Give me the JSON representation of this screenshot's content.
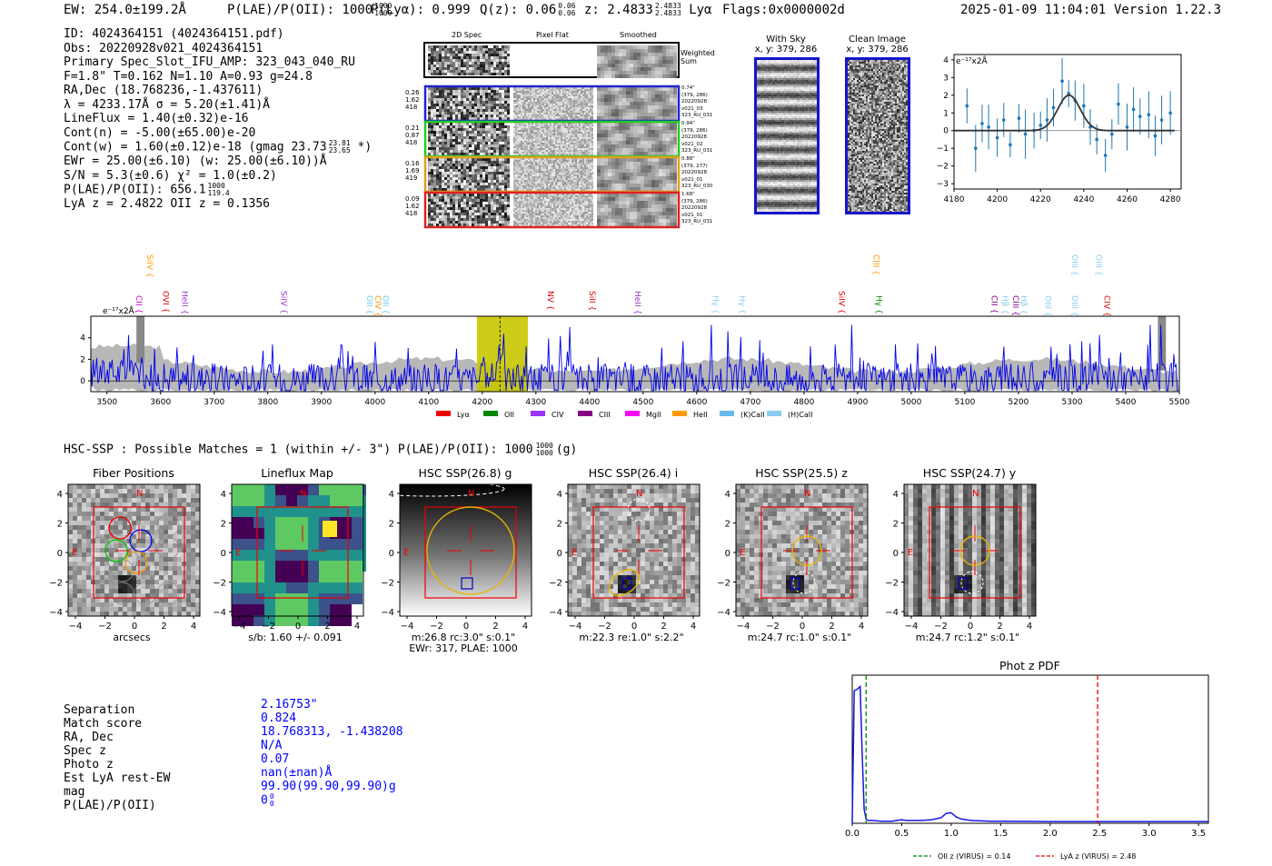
{
  "header": {
    "ew": "EW: 254.0±199.2Å",
    "plae_label": "P(LAE)/P(OII): 1000",
    "plae_sup": "1000",
    "plae_sub": "1000",
    "plya": "P(Lyα): 0.999",
    "qz_label": "Q(z): 0.06",
    "qz_sup": "0.06",
    "qz_sub": "0.06",
    "z_label": "z: 2.4833",
    "z_sup": "2.4833",
    "z_sub": "2.4833",
    "z_line": "Lyα",
    "flags": "Flags:0x0000002d",
    "timestamp": "2025-01-09 11:04:01",
    "version": "Version 1.22.3"
  },
  "info": {
    "id": "ID: 4024364151 (4024364151.pdf)",
    "obs": "Obs: 20220928v021_4024364151",
    "primary": "Primary Spec_Slot_IFU_AMP: 323_043_040_RU",
    "fparams": "F=1.8\"  T=0.162  N=1.10  A=0.93  g=24.8",
    "radec": "RA,Dec (18.768236,-1.437611)",
    "lambda": "λ = 4233.17Å   σ = 5.20(±1.41)Å",
    "lineflux": "LineFlux = 1.40(±0.32)e-16",
    "contn": "Cont(n) = -5.00(±65.00)e-20",
    "contw": "Cont(w) = 1.60(±0.12)e-18 (gmag 23.73",
    "contw_sup": "23.81",
    "contw_sub": "23.65",
    "contw_end": " *)",
    "ewr": "EWr = 25.00(±6.10) (w: 25.00(±6.10))Å",
    "sn": "S/N = 5.3(±0.6)  χ² = 1.0(±0.2)",
    "plae": "P(LAE)/P(OII): 656.1",
    "plae_sup": "1000",
    "plae_sub": "119.4",
    "lyaz": "LyA z = 2.4822  OII z = 0.1356"
  },
  "cutouts": {
    "col_headers": [
      "2D Spec",
      "Pixel Flat",
      "Smoothed"
    ],
    "weighted_sum": "Weighted Sum",
    "rows": [
      {
        "left": [
          "0.26",
          "1.62",
          "418"
        ],
        "right": [
          "0.74\"",
          "(379, 286)",
          "20220928",
          "v021_03",
          "323_RU_031"
        ],
        "color": "#2222cc"
      },
      {
        "left": [
          "0.21",
          "0.87",
          "418"
        ],
        "right": [
          "0.94\"",
          "(379, 286)",
          "20220928",
          "v021_02",
          "323_RU_031"
        ],
        "color": "#22cc22"
      },
      {
        "left": [
          "0.16",
          "1.69",
          "419"
        ],
        "right": [
          "0.88\"",
          "(379, 277)",
          "20220928",
          "v021_01",
          "323_RU_030"
        ],
        "color": "#e0a020"
      },
      {
        "left": [
          "0.09",
          "1.62",
          "418"
        ],
        "right": [
          "1.68\"",
          "(379, 286)",
          "20220928",
          "v021_01",
          "323_RU_031"
        ],
        "color": "#dd2222"
      }
    ],
    "with_sky_title": "With Sky",
    "with_sky_xy": "x, y: 379, 286",
    "clean_title": "Clean Image",
    "clean_xy": "x, y: 379, 286"
  },
  "zoom_chart": {
    "unit": "e⁻¹⁷x2Å",
    "chart_data": {
      "type": "scatter",
      "x": [
        4186,
        4190,
        4193,
        4196,
        4200,
        4203,
        4206,
        4210,
        4213,
        4217,
        4220,
        4223,
        4226,
        4230,
        4233,
        4236,
        4240,
        4243,
        4246,
        4250,
        4253,
        4256,
        4260,
        4263,
        4266,
        4270,
        4273,
        4276,
        4280
      ],
      "y": [
        1.4,
        -1.0,
        0.4,
        0.2,
        -0.4,
        0.6,
        -0.8,
        0.7,
        -0.2,
        0.0,
        0.3,
        0.6,
        1.3,
        2.8,
        2.1,
        1.7,
        1.4,
        0.2,
        -0.5,
        -1.4,
        -0.2,
        1.5,
        0.2,
        1.2,
        0.8,
        0.9,
        -0.3,
        0.6,
        1.0
      ],
      "xlim": [
        4180,
        4285
      ],
      "ylim": [
        -3.3,
        4.3
      ],
      "xticks": [
        4180,
        4200,
        4220,
        4240,
        4260,
        4280
      ],
      "yticks": [
        -3,
        -2,
        -1,
        0,
        1,
        2,
        3,
        4
      ],
      "fit_center": 4233.17,
      "fit_sigma": 5.2,
      "fit_amp": 2.0
    }
  },
  "spectrum": {
    "unit": "e⁻¹⁷x2Å",
    "xticks": [
      3500,
      3600,
      3700,
      3800,
      3900,
      4000,
      4100,
      4200,
      4300,
      4400,
      4500,
      4600,
      4700,
      4800,
      4900,
      5000,
      5100,
      5200,
      5300,
      5400,
      5500
    ],
    "yticks": [
      0,
      2,
      4
    ],
    "xlim": [
      3470,
      5500
    ],
    "ylim": [
      -1,
      6
    ],
    "highlight": [
      4190,
      4285
    ],
    "line_marker": 4233,
    "lines": [
      {
        "name": "CII",
        "x": 3555,
        "row": 3,
        "color": "#cc00cc"
      },
      {
        "name": "SiIV",
        "x": 3575,
        "row": 1,
        "color": "#ff9900"
      },
      {
        "name": "OVI",
        "x": 3605,
        "row": 2,
        "color": "#dd0000"
      },
      {
        "name": "HeII",
        "x": 3640,
        "row": 2,
        "color": "#9933cc"
      },
      {
        "name": "SiIV",
        "x": 3825,
        "row": 2,
        "color": "#9933cc"
      },
      {
        "name": "OII",
        "x": 3985,
        "row": 3,
        "color": "#66ccee"
      },
      {
        "name": "CIV",
        "x": 4000,
        "row": 3,
        "color": "#ff9900"
      },
      {
        "name": "OII",
        "x": 4015,
        "row": 3,
        "color": "#66ccee"
      },
      {
        "name": "NV",
        "x": 4322,
        "row": 2,
        "color": "#dd0000"
      },
      {
        "name": "SiII",
        "x": 4400,
        "row": 2,
        "color": "#dd0000"
      },
      {
        "name": "HeII",
        "x": 4485,
        "row": 2,
        "color": "#9933cc"
      },
      {
        "name": "Hγ",
        "x": 4630,
        "row": 3,
        "color": "#88ccee"
      },
      {
        "name": "Hγ",
        "x": 4680,
        "row": 3,
        "color": "#88ccee"
      },
      {
        "name": "SiIV",
        "x": 4865,
        "row": 2,
        "color": "#dd0000"
      },
      {
        "name": "CIII",
        "x": 4930,
        "row": 1,
        "color": "#ff9900"
      },
      {
        "name": "Hγ",
        "x": 4935,
        "row": 3,
        "color": "#008800"
      },
      {
        "name": "CII",
        "x": 5150,
        "row": 3,
        "color": "#880088"
      },
      {
        "name": "Hβ",
        "x": 5170,
        "row": 3,
        "color": "#88ccee"
      },
      {
        "name": "CIII",
        "x": 5190,
        "row": 3,
        "color": "#880088"
      },
      {
        "name": "Hβ",
        "x": 5205,
        "row": 3,
        "color": "#88ccee"
      },
      {
        "name": "OIII",
        "x": 5250,
        "row": 3,
        "color": "#88ccee"
      },
      {
        "name": "OIII",
        "x": 5300,
        "row": 1,
        "color": "#88ccee"
      },
      {
        "name": "OIII",
        "x": 5300,
        "row": 3,
        "color": "#88ccee"
      },
      {
        "name": "OIII",
        "x": 5345,
        "row": 1,
        "color": "#88ccee"
      },
      {
        "name": "CIV",
        "x": 5360,
        "row": 3,
        "color": "#dd0000"
      }
    ],
    "legend": [
      {
        "label": "Lyα",
        "color": "#ee0000"
      },
      {
        "label": "OII",
        "color": "#008800"
      },
      {
        "label": "CIV",
        "color": "#9933ff"
      },
      {
        "label": "CIII",
        "color": "#880088"
      },
      {
        "label": "MgII",
        "color": "#ff00ff"
      },
      {
        "label": "HeII",
        "color": "#ff9900"
      },
      {
        "label": "(K)CaII",
        "color": "#66bbee"
      },
      {
        "label": "(H)CaII",
        "color": "#88ccee"
      }
    ]
  },
  "hsc": {
    "summary": "HSC-SSP : Possible Matches = 1 (within +/- 3\")  P(LAE)/P(OII): 1000",
    "summary_sup": "1000",
    "summary_sub": "1000",
    "summary_end": "(g)",
    "panels": [
      {
        "title": "Fiber Positions",
        "caption1": "arcsecs",
        "caption2": ""
      },
      {
        "title": "Lineflux Map",
        "caption1": "s/b: 1.60 +/- 0.091",
        "caption2": ""
      },
      {
        "title": "HSC SSP(26.8) g",
        "caption1": "m:26.8 rc:3.0\"  s:0.1\"",
        "caption2": "EWr: 317, PLAE: 1000"
      },
      {
        "title": "HSC SSP(26.4) i",
        "caption1": "m:22.3  re:1.0\"  s:2.2\"",
        "caption2": ""
      },
      {
        "title": "HSC SSP(25.5) z",
        "caption1": "m:24.7 rc:1.0\"  s:0.1\"",
        "caption2": ""
      },
      {
        "title": "HSC SSP(24.7) y",
        "caption1": "m:24.7 rc:1.2\"  s:0.1\"",
        "caption2": ""
      }
    ],
    "axis_ticks": [
      "4",
      "2",
      "0",
      "−2",
      "−4"
    ],
    "x_ticks": [
      "−4",
      "−2",
      "0",
      "2",
      "4"
    ],
    "north": "N",
    "east": "E"
  },
  "match": {
    "labels": [
      "Separation",
      "Match score",
      "RA, Dec",
      "Spec z",
      "Photo z",
      "Est LyA rest-EW",
      "mag",
      "P(LAE)/P(OII)"
    ],
    "values": [
      "2.16753\"",
      "0.824",
      "18.768313, -1.438208",
      "N/A",
      "0.07",
      "nan(±nan)Å",
      "99.90(99.90,99.90)g",
      "0"
    ],
    "plae_sup": "0",
    "plae_sub": "0"
  },
  "photz": {
    "title": "Phot z PDF",
    "legend_oii": "OII z (VIRUS) = 0.14",
    "legend_lya": "LyA z (VIRUS) = 2.48",
    "chart_data": {
      "type": "line",
      "xlim": [
        0,
        3.6
      ],
      "xticks": [
        0.0,
        0.5,
        1.0,
        1.5,
        2.0,
        2.5,
        3.0,
        3.5
      ],
      "x": [
        0.0,
        0.02,
        0.05,
        0.08,
        0.1,
        0.12,
        0.14,
        0.16,
        0.2,
        0.3,
        0.4,
        0.45,
        0.5,
        0.55,
        0.6,
        0.7,
        0.8,
        0.9,
        0.95,
        1.0,
        1.05,
        1.1,
        1.2,
        1.4,
        1.6,
        2.0,
        2.5,
        3.0,
        3.6
      ],
      "y": [
        0.0,
        0.94,
        0.95,
        0.97,
        0.5,
        0.1,
        0.03,
        0.02,
        0.02,
        0.015,
        0.015,
        0.02,
        0.025,
        0.02,
        0.02,
        0.02,
        0.025,
        0.04,
        0.07,
        0.075,
        0.045,
        0.03,
        0.02,
        0.015,
        0.015,
        0.012,
        0.012,
        0.012,
        0.012
      ],
      "ylim": [
        0,
        1.05
      ],
      "oii_z": 0.14,
      "lya_z": 2.48
    }
  }
}
